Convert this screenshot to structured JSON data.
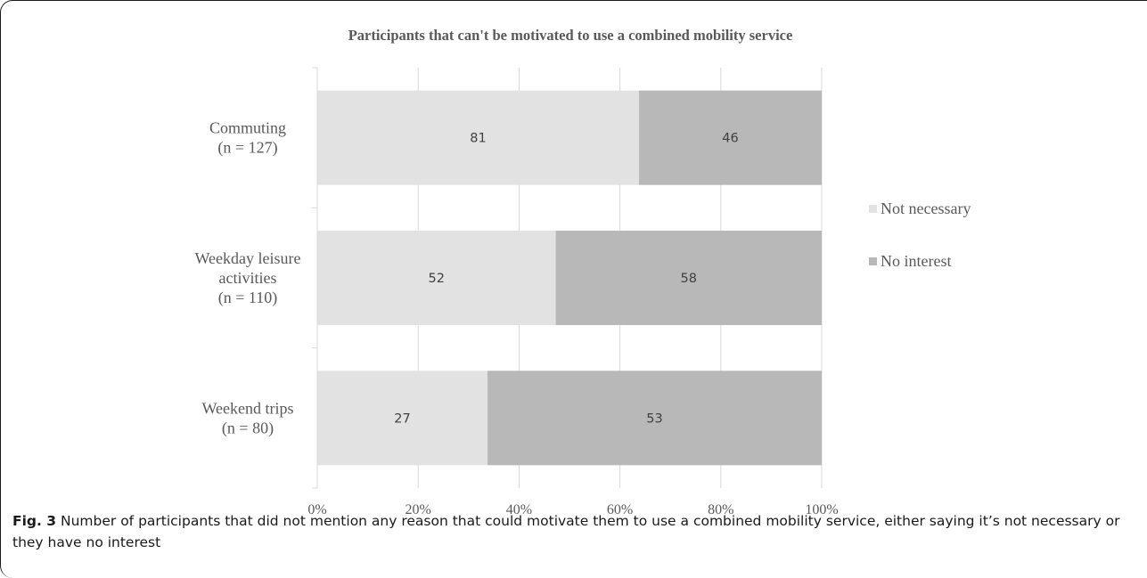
{
  "chart_data": {
    "type": "bar",
    "orientation": "horizontal",
    "stacked": "percent",
    "title": "Participants that can't be motivated to use a combined mobility service",
    "categories": [
      [
        "Commuting",
        "(n = 127)"
      ],
      [
        "Weekday leisure",
        "activities",
        "(n = 110)"
      ],
      [
        "Weekend trips",
        "(n = 80)"
      ]
    ],
    "series": [
      {
        "name": "Not necessary",
        "values": [
          81,
          52,
          27
        ],
        "color": "#e2e2e2"
      },
      {
        "name": "No interest",
        "values": [
          46,
          58,
          53
        ],
        "color": "#b8b8b8"
      }
    ],
    "xticks": [
      "0%",
      "20%",
      "40%",
      "60%",
      "80%",
      "100%"
    ],
    "xlim": [
      0,
      100
    ],
    "grid": "vertical",
    "legend": "right"
  },
  "caption": {
    "label": "Fig. 3",
    "text": " Number of participants that did not mention any reason that could motivate them to use a combined mobility service, either saying it’s not necessary or they have no interest"
  }
}
